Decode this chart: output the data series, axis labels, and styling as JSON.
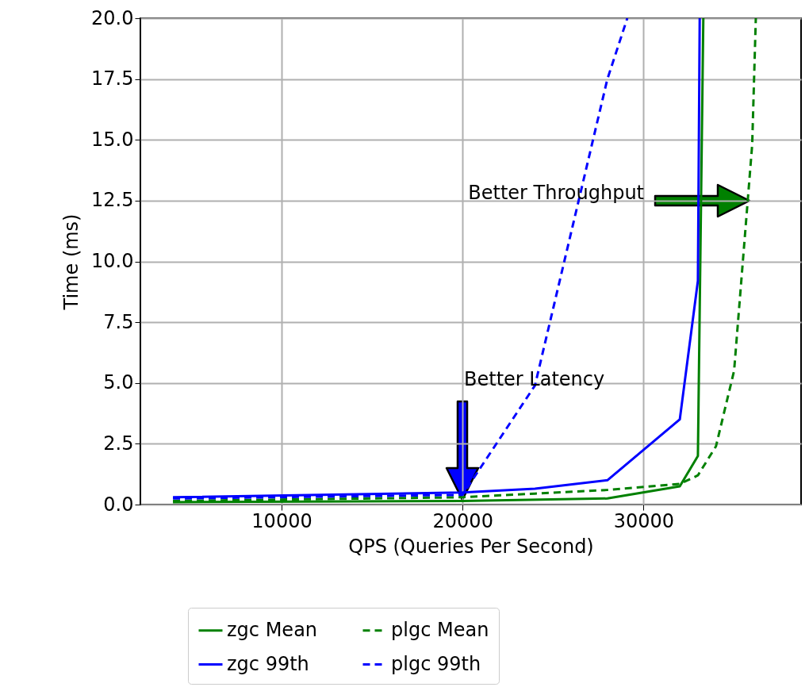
{
  "chart_data": {
    "type": "line",
    "xlabel": "QPS (Queries Per Second)",
    "ylabel": "Time (ms)",
    "xlim": [
      2200,
      38700
    ],
    "xticks": [
      10000,
      20000,
      30000
    ],
    "ylim": [
      0,
      20
    ],
    "yticks": [
      {
        "value": 0,
        "label": "0.0"
      },
      2.5,
      {
        "value": 5,
        "label": "5.0"
      },
      7.5,
      {
        "value": 10,
        "label": "10.0"
      },
      12.5,
      {
        "value": 15,
        "label": "15.0"
      },
      17.5,
      {
        "value": 20,
        "label": "20.0"
      }
    ],
    "grid": true,
    "legend": "bottom",
    "marker": "none",
    "series": [
      {
        "name": "zgc Mean",
        "color": "#008000",
        "line_style": "solid",
        "x": [
          4000,
          20000,
          28000,
          32000,
          33000,
          33300
        ],
        "values": [
          0.1,
          0.15,
          0.25,
          0.75,
          2.0,
          20
        ]
      },
      {
        "name": "plgc Mean",
        "color": "#008000",
        "line_style": "dashed",
        "x": [
          4000,
          20000,
          24000,
          28000,
          32000,
          33000,
          34000,
          35000,
          36000,
          36200
        ],
        "values": [
          0.15,
          0.3,
          0.45,
          0.6,
          0.85,
          1.2,
          2.4,
          5.5,
          14.8,
          20
        ]
      },
      {
        "name": "zgc 99th",
        "color": "#0000ff",
        "line_style": "solid",
        "x": [
          4000,
          20000,
          24000,
          28000,
          32000,
          33000,
          33100
        ],
        "values": [
          0.3,
          0.5,
          0.65,
          1.0,
          3.5,
          9.2,
          20
        ]
      },
      {
        "name": "plgc 99th",
        "color": "#0000ff",
        "line_style": "dashed",
        "x": [
          4000,
          20000,
          24000,
          28000,
          29100
        ],
        "values": [
          0.25,
          0.4,
          4.9,
          17.5,
          20
        ]
      }
    ],
    "annotations": [
      "Better Latency",
      "Better Throughput"
    ]
  }
}
